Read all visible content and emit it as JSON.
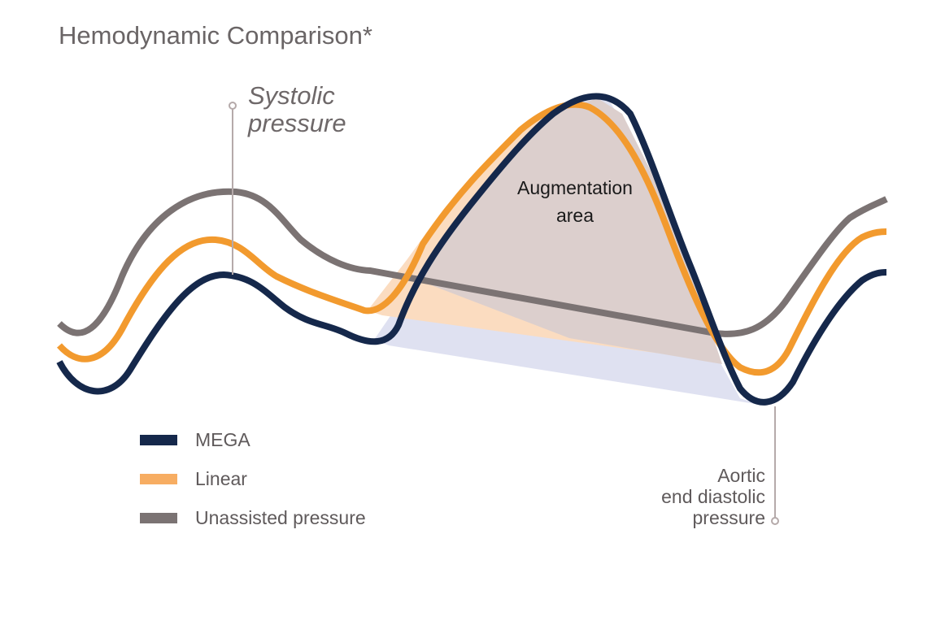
{
  "title": "Hemodynamic Comparison*",
  "annotations": {
    "systolic_line1": "Systolic",
    "systolic_line2": "pressure",
    "augmentation_line1": "Augmentation",
    "augmentation_line2": "area",
    "aortic_line1": "Aortic",
    "aortic_line2": "end diastolic",
    "aortic_line3": "pressure"
  },
  "legend": [
    {
      "label": "MEGA",
      "color": "#15284b"
    },
    {
      "label": "Linear",
      "color": "#f7ad62"
    },
    {
      "label": "Unassisted pressure",
      "color": "#7b7373"
    }
  ],
  "colors": {
    "mega": "#15284b",
    "linear": "#f29a2e",
    "unassisted": "#7b7373",
    "augmentation_fill": "#dccfcd",
    "linear_fill": "#fbdcc0",
    "mega_fill": "#dfe1f1",
    "callout": "#b5aaaa"
  }
}
